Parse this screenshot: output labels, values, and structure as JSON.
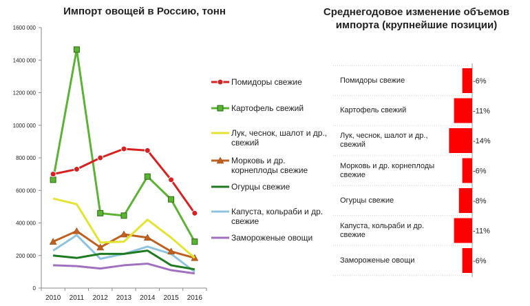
{
  "chart_data": [
    {
      "type": "line",
      "title": "Импорт овощей в Россию, тонн",
      "x": [
        "2010",
        "2011",
        "2012",
        "2013",
        "2014",
        "2015",
        "2016"
      ],
      "y_ticks": [
        "0",
        "200 000",
        "400 000",
        "600 000",
        "800 000",
        "1000 000",
        "1200 000",
        "1400 000",
        "1600 000"
      ],
      "ylim": [
        0,
        1600000
      ],
      "grid": false,
      "legend_position": "right",
      "series": [
        {
          "name": "Помидоры свежие",
          "color": "#d92020",
          "marker": "circle",
          "values": [
            700000,
            730000,
            800000,
            855000,
            845000,
            665000,
            460000
          ]
        },
        {
          "name": "Картофель свежий",
          "color": "#5bb333",
          "marker": "square",
          "values": [
            665000,
            1465000,
            460000,
            445000,
            685000,
            545000,
            285000
          ]
        },
        {
          "name": "Лук, чеснок, шалот и др., свежий",
          "color": "#e3e332",
          "marker": "none",
          "values": [
            550000,
            515000,
            280000,
            285000,
            420000,
            310000,
            185000
          ]
        },
        {
          "name": "Морковь и др. корнеплоды свежие",
          "color": "#c06020",
          "marker": "triangle",
          "values": [
            285000,
            350000,
            250000,
            330000,
            310000,
            225000,
            185000
          ]
        },
        {
          "name": "Огурцы свежие",
          "color": "#1e7a1e",
          "marker": "none",
          "values": [
            200000,
            185000,
            210000,
            210000,
            230000,
            140000,
            115000
          ]
        },
        {
          "name": "Капуста, кольраби и др. свежие",
          "color": "#8ec4e0",
          "marker": "none",
          "values": [
            230000,
            325000,
            180000,
            210000,
            255000,
            210000,
            100000
          ]
        },
        {
          "name": "Замороженые овощи",
          "color": "#a070c0",
          "marker": "none",
          "values": [
            140000,
            135000,
            120000,
            140000,
            150000,
            110000,
            90000
          ]
        }
      ]
    },
    {
      "type": "bar",
      "orientation": "horizontal",
      "title": "Среднегодовое изменение объемов импорта (крупнейшие позиции)",
      "color": "#ff0000",
      "categories": [
        "Помидоры свежие",
        "Картофель свежий",
        "Лук, чеснок, шалот и др., свежий",
        "Морковь и др. корнеплоды свежие",
        "Огурцы свежие",
        "Капуста, кольраби и др. свежие",
        "Замороженые овощи"
      ],
      "values": [
        -6,
        -11,
        -14,
        -6,
        -8,
        -11,
        -6
      ],
      "value_labels": [
        "-6%",
        "-11%",
        "-14%",
        "-6%",
        "-8%",
        "-11%",
        "-6%"
      ]
    }
  ]
}
